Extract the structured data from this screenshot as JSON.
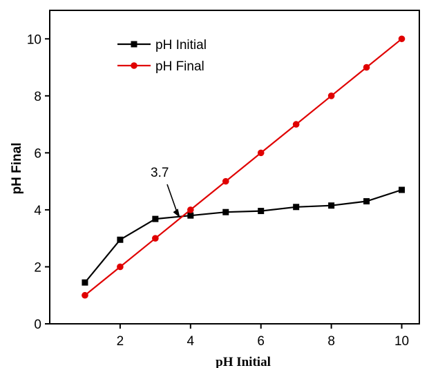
{
  "chart_data": {
    "type": "line",
    "xlabel": "pH Initial",
    "ylabel": "pH Final",
    "xlim": [
      0,
      10.5
    ],
    "ylim": [
      0,
      11
    ],
    "x_ticks": [
      2,
      4,
      6,
      8,
      10
    ],
    "y_ticks": [
      0,
      2,
      4,
      6,
      8,
      10
    ],
    "legend_position": "top-left",
    "series": [
      {
        "name": "pH Initial",
        "color": "#000000",
        "marker": "square",
        "x": [
          1,
          2,
          3,
          4,
          5,
          6,
          7,
          8,
          9,
          10
        ],
        "values": [
          1.45,
          2.95,
          3.68,
          3.8,
          3.92,
          3.96,
          4.1,
          4.15,
          4.3,
          4.7
        ]
      },
      {
        "name": "pH Final",
        "color": "#e00000",
        "marker": "circle",
        "x": [
          1,
          2,
          3,
          4,
          5,
          6,
          7,
          8,
          9,
          10
        ],
        "values": [
          1,
          2,
          3,
          4,
          5,
          6,
          7,
          8,
          9,
          10
        ]
      }
    ],
    "annotations": [
      {
        "text": "3.7",
        "x": 3.7,
        "y": 3.7
      }
    ]
  }
}
